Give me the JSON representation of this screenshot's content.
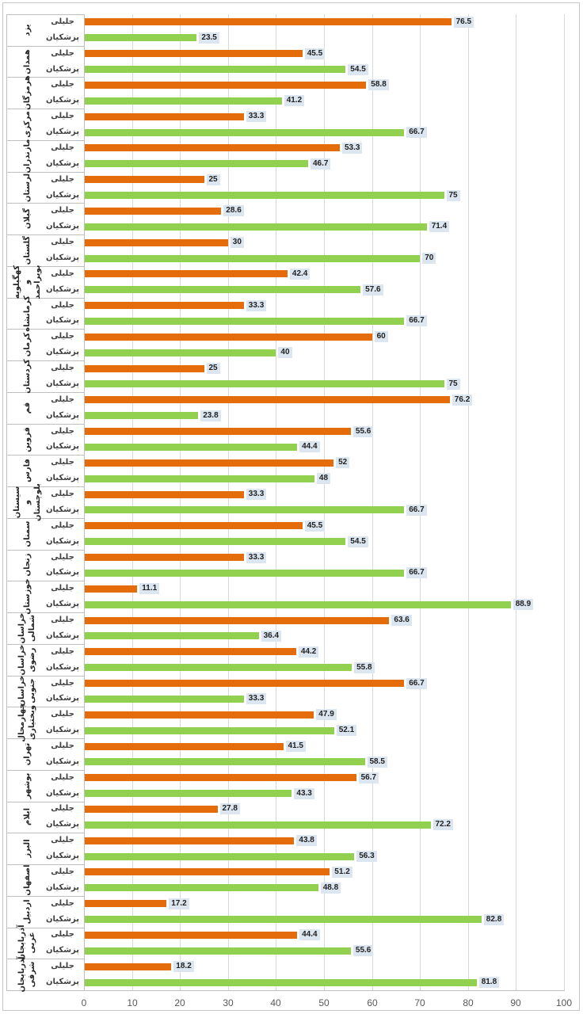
{
  "chart_data": {
    "type": "bar",
    "orientation": "horizontal",
    "categories": [
      "یزد",
      "همدان",
      "هرمزگان",
      "مرکزی",
      "مازندران",
      "لرستان",
      "گیلان",
      "گلستان",
      "کهگیلویه و بویراحمد",
      "کرمانشاه",
      "کرمان",
      "کردستان",
      "قم",
      "قزوین",
      "فارس",
      "سیستان و بلوچستان",
      "سمنان",
      "زنجان",
      "خوزستان",
      "خراسان شمالی",
      "خراسان رضوی",
      "خراسان جنوبی",
      "چهارمحال وبختیاری",
      "تهران",
      "بوشهر",
      "ایلام",
      "البرز",
      "اصفهان",
      "اردبیل",
      "آذربایجان غربی",
      "آذربایجان شرقی"
    ],
    "series": [
      {
        "name": "جلیلی",
        "color": "#E46C0A",
        "values": [
          76.5,
          45.5,
          58.8,
          33.3,
          53.3,
          25,
          28.6,
          30,
          42.4,
          33.3,
          60,
          25,
          76.2,
          55.6,
          52,
          33.3,
          45.5,
          33.3,
          11.1,
          63.6,
          44.2,
          66.7,
          47.9,
          41.5,
          56.7,
          27.8,
          43.8,
          51.2,
          17.2,
          44.4,
          18.2
        ]
      },
      {
        "name": "پزشکیان",
        "color": "#92D050",
        "values": [
          23.5,
          54.5,
          41.2,
          66.7,
          46.7,
          75,
          71.4,
          70,
          57.6,
          66.7,
          40,
          75,
          23.8,
          44.4,
          48,
          66.7,
          54.5,
          66.7,
          88.9,
          36.4,
          55.8,
          33.3,
          52.1,
          58.5,
          43.3,
          72.2,
          56.3,
          48.8,
          82.8,
          55.6,
          81.8
        ]
      }
    ],
    "xlim": [
      0,
      100
    ],
    "xticks": [
      0,
      10,
      20,
      30,
      40,
      50,
      60,
      70,
      80,
      90,
      100
    ],
    "data_labels": true,
    "data_label_fill": "#DCE6F1",
    "grid": true,
    "legend": "none"
  }
}
